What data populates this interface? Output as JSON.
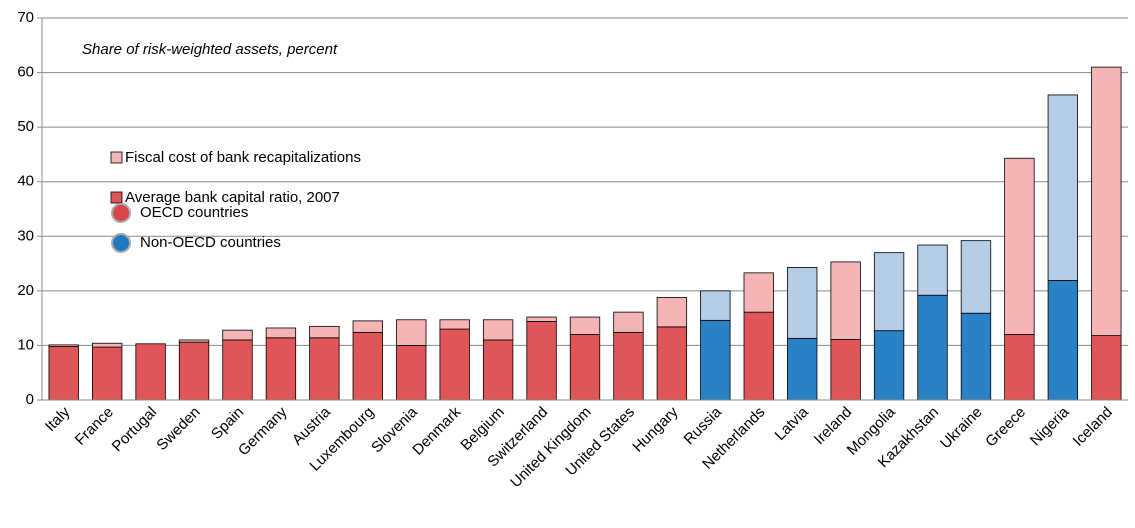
{
  "chart_data": {
    "type": "stacked_bar",
    "subtitle": "Share of risk-weighted assets, percent",
    "categories": [
      "Italy",
      "France",
      "Portugal",
      "Sweden",
      "Spain",
      "Germany",
      "Austria",
      "Luxembourg",
      "Slovenia",
      "Denmark",
      "Belgium",
      "Switzerland",
      "United Kingdom",
      "United States",
      "Hungary",
      "Russia",
      "Netherlands",
      "Latvia",
      "Ireland",
      "Mongolia",
      "Kazakhstan",
      "Ukraine",
      "Greece",
      "Nigeria",
      "Iceland"
    ],
    "category_group": [
      0,
      0,
      0,
      0,
      0,
      0,
      0,
      0,
      0,
      0,
      0,
      0,
      0,
      0,
      0,
      1,
      0,
      1,
      0,
      1,
      1,
      1,
      0,
      1,
      0
    ],
    "groups": [
      {
        "name": "OECD countries",
        "color": "#d9464a",
        "colors": [
          "#e05558",
          "#f5b5b7"
        ]
      },
      {
        "name": "Non-OECD countries",
        "color": "#1f78bd",
        "colors": [
          "#2a82c4",
          "#b5cde6"
        ]
      }
    ],
    "series": [
      {
        "name": "Average bank capital ratio, 2007",
        "values": [
          9.8,
          9.7,
          10.3,
          10.6,
          11.0,
          11.4,
          11.4,
          12.4,
          10.0,
          13.0,
          11.0,
          14.4,
          12.0,
          12.4,
          13.4,
          14.6,
          16.1,
          11.3,
          11.1,
          12.7,
          19.2,
          15.9,
          12.0,
          21.9,
          11.8
        ]
      },
      {
        "name": "Fiscal cost of bank recapitalizations",
        "values": [
          0.3,
          0.7,
          0,
          0.4,
          1.8,
          1.8,
          2.1,
          2.1,
          4.7,
          1.7,
          3.7,
          0.8,
          3.2,
          3.7,
          5.4,
          5.4,
          7.2,
          13.0,
          14.2,
          14.3,
          9.2,
          13.3,
          32.3,
          34.0,
          49.2
        ]
      }
    ],
    "ylim": [
      0,
      70
    ],
    "yticks": [
      0,
      10,
      20,
      30,
      40,
      50,
      60,
      70
    ],
    "grid": true
  }
}
